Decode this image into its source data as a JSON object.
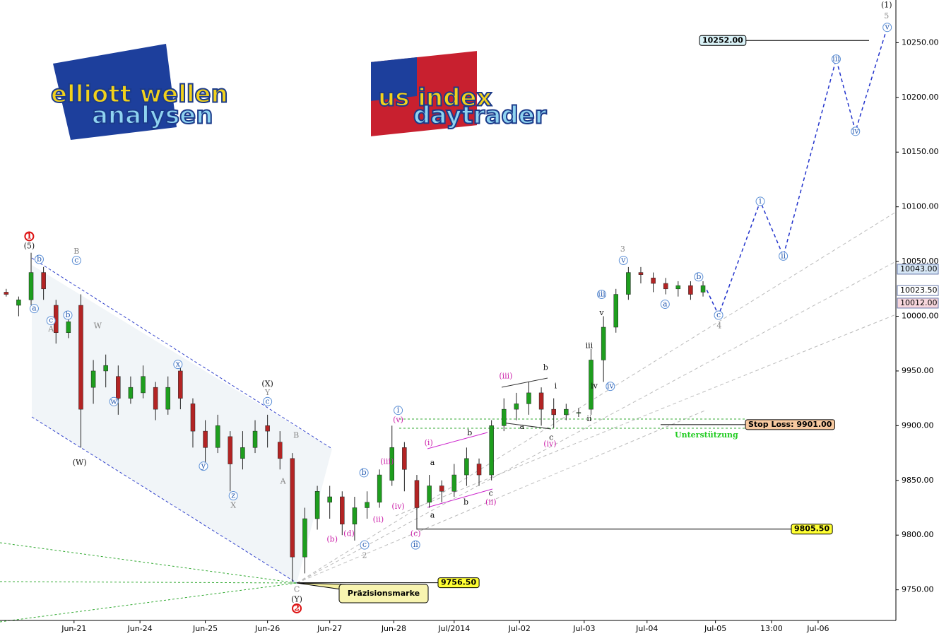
{
  "chart_data": {
    "type": "candlestick",
    "logos": [
      "elliott wellen",
      "analysen",
      "us index",
      "daytrader"
    ],
    "xlim": [
      0,
      144
    ],
    "ylim": [
      9722,
      10289
    ],
    "yticks": [
      {
        "value": 9750,
        "label": "9750.00"
      },
      {
        "value": 9800,
        "label": "9800.00"
      },
      {
        "value": 9850,
        "label": "9850.00"
      },
      {
        "value": 9900,
        "label": "9900.00"
      },
      {
        "value": 9950,
        "label": "9950.00"
      },
      {
        "value": 10000,
        "label": "10000.00"
      },
      {
        "value": 10050,
        "label": "10050.00"
      },
      {
        "value": 10100,
        "label": "10100.00"
      },
      {
        "value": 10150,
        "label": "10150.00"
      },
      {
        "value": 10200,
        "label": "10200.00"
      },
      {
        "value": 10250,
        "label": "10250.00"
      }
    ],
    "xticks": [
      {
        "value": 11.9,
        "label": "Jun-21"
      },
      {
        "value": 22.5,
        "label": "Jun-24"
      },
      {
        "value": 33,
        "label": "Jun-25"
      },
      {
        "value": 43,
        "label": "Jun-26"
      },
      {
        "value": 53,
        "label": "Jun-27"
      },
      {
        "value": 63.3,
        "label": "Jun-28"
      },
      {
        "value": 73,
        "label": "Jul/2014"
      },
      {
        "value": 83.5,
        "label": "Jul-02"
      },
      {
        "value": 93.9,
        "label": "Jul-03"
      },
      {
        "value": 104,
        "label": "Jul-04"
      },
      {
        "value": 115,
        "label": "Jul-05"
      },
      {
        "value": 124,
        "label": "13:00"
      },
      {
        "value": 131.5,
        "label": "Jul-06"
      }
    ],
    "up_color": "#1e9e1e",
    "down_color": "#b32424",
    "candles": {
      "x": [
        1,
        3,
        5,
        7,
        9,
        11,
        13,
        15,
        17,
        19,
        21,
        23,
        25,
        27,
        29,
        31,
        33,
        35,
        37,
        39,
        41,
        43,
        45,
        47,
        49,
        51,
        53,
        55,
        57,
        59,
        61,
        63,
        65,
        67,
        69,
        71,
        73,
        75,
        77,
        79,
        81,
        83,
        85,
        87,
        89,
        91,
        93,
        95,
        97,
        99,
        101,
        103,
        105,
        107,
        109,
        111,
        113
      ],
      "open": [
        10022,
        10010,
        10015,
        10040,
        10010,
        9985,
        10010,
        9935,
        9950,
        9945,
        9925,
        9930,
        9935,
        9915,
        9950,
        9920,
        9895,
        9880,
        9890,
        9870,
        9880,
        9900,
        9885,
        9870,
        9780,
        9815,
        9830,
        9835,
        9810,
        9825,
        9830,
        9850,
        9880,
        9850,
        9830,
        9845,
        9840,
        9855,
        9865,
        9855,
        9900,
        9915,
        9920,
        9930,
        9915,
        9910,
        9912,
        9915,
        9960,
        9990,
        10020,
        10040,
        10035,
        10030,
        10025,
        10028,
        10022
      ],
      "high": [
        10025,
        10018,
        10058,
        10045,
        10015,
        10005,
        10020,
        9960,
        9965,
        9955,
        9945,
        9955,
        9940,
        9945,
        9955,
        9925,
        9905,
        9910,
        9895,
        9895,
        9905,
        9910,
        9895,
        9875,
        9825,
        9845,
        9845,
        9840,
        9835,
        9840,
        9860,
        9900,
        9885,
        9855,
        9855,
        9850,
        9865,
        9880,
        9870,
        9905,
        9925,
        9930,
        9940,
        9935,
        9925,
        9920,
        9916,
        9970,
        10000,
        10025,
        10045,
        10045,
        10040,
        10035,
        10032,
        10032,
        10032
      ],
      "low": [
        10018,
        10000,
        10010,
        10015,
        9975,
        9980,
        9880,
        9920,
        9935,
        9910,
        9920,
        9925,
        9905,
        9910,
        9915,
        9880,
        9860,
        9875,
        9840,
        9860,
        9875,
        9880,
        9860,
        9757,
        9765,
        9805,
        9815,
        9800,
        9795,
        9815,
        9825,
        9845,
        9840,
        9805,
        9825,
        9830,
        9835,
        9845,
        9845,
        9850,
        9895,
        9905,
        9910,
        9900,
        9898,
        9905,
        9908,
        9910,
        9940,
        9985,
        10015,
        10030,
        10022,
        10020,
        10018,
        10015,
        10018
      ],
      "close": [
        10020,
        10015,
        10040,
        10025,
        9985,
        9995,
        9915,
        9950,
        9955,
        9925,
        9935,
        9945,
        9915,
        9935,
        9925,
        9895,
        9880,
        9900,
        9865,
        9880,
        9895,
        9895,
        9870,
        9780,
        9815,
        9840,
        9835,
        9810,
        9825,
        9830,
        9855,
        9880,
        9860,
        9825,
        9845,
        9840,
        9855,
        9870,
        9855,
        9900,
        9915,
        9920,
        9930,
        9915,
        9910,
        9915,
        9912,
        9960,
        9990,
        10020,
        10040,
        10038,
        10030,
        10025,
        10028,
        10020,
        10028
      ]
    },
    "projection": {
      "color": "#2233cc",
      "x": [
        113.6,
        115.5,
        122.2,
        125.9,
        134.4,
        137.5,
        142.6
      ],
      "y": [
        10024,
        10001,
        10105,
        10055,
        10235,
        10169,
        10264
      ]
    },
    "levels": [
      {
        "value": 10252,
        "label": "10252.00",
        "color": "#d9f2f7"
      },
      {
        "value": 9901,
        "label": "Stop Loss: 9901.00",
        "color": "#f7c9a0"
      },
      {
        "value": 9805.5,
        "label": "9805.50",
        "color": "#ffff33"
      },
      {
        "value": 9756.5,
        "label": "9756.50",
        "color": "#ffff33"
      }
    ],
    "price_tags": [
      {
        "value": 10043,
        "label": "10043.00",
        "color": "#d6e6f5"
      },
      {
        "value": 10023.5,
        "label": "10023.50",
        "color": "#ffffff"
      },
      {
        "value": 10012,
        "label": "10012.00",
        "color": "#f7d6dc"
      }
    ],
    "support_label": "Unterstützung",
    "marker_label": "Präzisionsmarke",
    "annotations": [
      {
        "text": "1",
        "x": 4.7,
        "y": 10073,
        "style": "red-circle"
      },
      {
        "text": "(5)",
        "x": 4.7,
        "y": 10064,
        "style": "black"
      },
      {
        "text": "(W)",
        "x": 12.8,
        "y": 9866,
        "style": "black"
      },
      {
        "text": "(X)",
        "x": 43,
        "y": 9938,
        "style": "black"
      },
      {
        "text": "(Y)",
        "x": 47.7,
        "y": 9741,
        "style": "black"
      },
      {
        "text": "2",
        "x": 47.7,
        "y": 9733,
        "style": "red-circle"
      },
      {
        "text": "A",
        "x": 8.2,
        "y": 9988,
        "style": "gray"
      },
      {
        "text": "B",
        "x": 12.3,
        "y": 10059,
        "style": "gray"
      },
      {
        "text": "W",
        "x": 15.7,
        "y": 9991,
        "style": "gray"
      },
      {
        "text": "X",
        "x": 37.5,
        "y": 9827,
        "style": "gray"
      },
      {
        "text": "Y",
        "x": 43,
        "y": 9930,
        "style": "gray"
      },
      {
        "text": "B",
        "x": 47.6,
        "y": 9891,
        "style": "gray"
      },
      {
        "text": "A",
        "x": 45.5,
        "y": 9849,
        "style": "gray"
      },
      {
        "text": "C",
        "x": 47.7,
        "y": 9750,
        "style": "gray"
      },
      {
        "text": "2",
        "x": 58.6,
        "y": 9781,
        "style": "gray-big"
      },
      {
        "text": "3",
        "x": 100.1,
        "y": 10061,
        "style": "gray-big"
      },
      {
        "text": "4",
        "x": 115.6,
        "y": 9991,
        "style": "gray-big"
      },
      {
        "text": "5",
        "x": 142.5,
        "y": 10274,
        "style": "gray-big"
      },
      {
        "text": "(1)",
        "x": 142.5,
        "y": 10284,
        "style": "black"
      },
      {
        "text": "b",
        "x": 6.3,
        "y": 10052,
        "style": "blue-circle"
      },
      {
        "text": "a",
        "x": 5.5,
        "y": 10007,
        "style": "blue-circle"
      },
      {
        "text": "c",
        "x": 8.2,
        "y": 9996,
        "style": "blue-circle"
      },
      {
        "text": "b",
        "x": 10.9,
        "y": 10001,
        "style": "blue-circle"
      },
      {
        "text": "c",
        "x": 12.3,
        "y": 10051,
        "style": "blue-circle"
      },
      {
        "text": "w",
        "x": 18.3,
        "y": 9922,
        "style": "blue-circle"
      },
      {
        "text": "x",
        "x": 28.6,
        "y": 9956,
        "style": "blue-circle"
      },
      {
        "text": "y",
        "x": 32.7,
        "y": 9863,
        "style": "blue-circle"
      },
      {
        "text": "z",
        "x": 37.5,
        "y": 9836,
        "style": "blue-circle"
      },
      {
        "text": "c",
        "x": 43,
        "y": 9922,
        "style": "blue-circle"
      },
      {
        "text": "b",
        "x": 58.5,
        "y": 9857,
        "style": "blue-circle"
      },
      {
        "text": "c",
        "x": 58.6,
        "y": 9791,
        "style": "blue-circle"
      },
      {
        "text": "i",
        "x": 64,
        "y": 9914,
        "style": "blue-circle"
      },
      {
        "text": "ii",
        "x": 66.8,
        "y": 9791,
        "style": "blue-circle"
      },
      {
        "text": "iv",
        "x": 98.1,
        "y": 9936,
        "style": "blue-circle"
      },
      {
        "text": "iii",
        "x": 96.7,
        "y": 10020,
        "style": "blue-circle"
      },
      {
        "text": "v",
        "x": 100.2,
        "y": 10051,
        "style": "blue-circle"
      },
      {
        "text": "a",
        "x": 106.9,
        "y": 10011,
        "style": "blue-circle"
      },
      {
        "text": "b",
        "x": 112.3,
        "y": 10036,
        "style": "blue-circle"
      },
      {
        "text": "c",
        "x": 115.5,
        "y": 10001,
        "style": "blue-circle"
      },
      {
        "text": "i",
        "x": 122.2,
        "y": 10105,
        "style": "blue-circle"
      },
      {
        "text": "ii",
        "x": 125.9,
        "y": 10055,
        "style": "blue-circle"
      },
      {
        "text": "iii",
        "x": 134.4,
        "y": 10235,
        "style": "blue-circle"
      },
      {
        "text": "iv",
        "x": 137.5,
        "y": 10169,
        "style": "blue-circle"
      },
      {
        "text": "v",
        "x": 142.6,
        "y": 10264,
        "style": "blue-circle"
      },
      {
        "text": "(iii)",
        "x": 81.3,
        "y": 9945,
        "style": "magenta"
      },
      {
        "text": "(iv)",
        "x": 88.4,
        "y": 9883,
        "style": "magenta"
      },
      {
        "text": "(ii)",
        "x": 78.9,
        "y": 9830,
        "style": "magenta"
      },
      {
        "text": "(c)",
        "x": 66.8,
        "y": 9801,
        "style": "magenta"
      },
      {
        "text": "(v)",
        "x": 64,
        "y": 9905,
        "style": "magenta"
      },
      {
        "text": "(iii)",
        "x": 62.2,
        "y": 9867,
        "style": "magenta"
      },
      {
        "text": "(iv)",
        "x": 64,
        "y": 9826,
        "style": "magenta"
      },
      {
        "text": "(b)",
        "x": 53.4,
        "y": 9796,
        "style": "magenta"
      },
      {
        "text": "(d)",
        "x": 56.1,
        "y": 9801,
        "style": "magenta"
      },
      {
        "text": "(ii)",
        "x": 60.8,
        "y": 9814,
        "style": "magenta"
      },
      {
        "text": "(i)",
        "x": 68.9,
        "y": 9884,
        "style": "magenta"
      },
      {
        "text": "b",
        "x": 87.7,
        "y": 9953,
        "style": "black"
      },
      {
        "text": "a",
        "x": 83.9,
        "y": 9899,
        "style": "black"
      },
      {
        "text": "c",
        "x": 88.6,
        "y": 9889,
        "style": "black"
      },
      {
        "text": "i",
        "x": 89.3,
        "y": 9936,
        "style": "black"
      },
      {
        "text": "ii",
        "x": 94.7,
        "y": 9906,
        "style": "black"
      },
      {
        "text": "iii",
        "x": 94.7,
        "y": 9973,
        "style": "black"
      },
      {
        "text": "v",
        "x": 96.7,
        "y": 10003,
        "style": "black"
      },
      {
        "text": "iv",
        "x": 95.5,
        "y": 9936,
        "style": "black"
      },
      {
        "text": "b",
        "x": 75.5,
        "y": 9893,
        "style": "black"
      },
      {
        "text": "a",
        "x": 69.5,
        "y": 9866,
        "style": "black"
      },
      {
        "text": "b",
        "x": 74.9,
        "y": 9830,
        "style": "black"
      },
      {
        "text": "a",
        "x": 69.5,
        "y": 9818,
        "style": "black"
      },
      {
        "text": "c",
        "x": 78.9,
        "y": 9838,
        "style": "black"
      }
    ]
  }
}
